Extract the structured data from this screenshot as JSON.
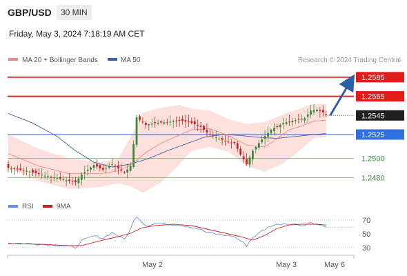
{
  "header": {
    "symbol": "GBP/USD",
    "timeframe": "30 MIN",
    "datetime": "Friday, May 3, 2024 7:18:19 AM CET"
  },
  "legend": {
    "ma20": "MA 20 + Bollinger Bands",
    "ma50": "MA 50",
    "credit": "Research © 2024 Trading Central",
    "rsi": "RSI",
    "rsi_ma": "9MA"
  },
  "colors": {
    "resistance": "#e31b1b",
    "support": "#6db96d",
    "ma50": "#3b5fa8",
    "ma20": "#f08a80",
    "bollinger": "#fde0dc",
    "pivot_line": "#4a7ee8",
    "arrow": "#2f5ea8",
    "candle_up": "#3b8a3b",
    "candle_down": "#cc2222",
    "rsi": "#6b8fe0",
    "rsi_ma": "#cc2222"
  },
  "chart_data": [
    {
      "type": "candlestick",
      "ylim": [
        1.246,
        1.2595
      ],
      "x_ticks": [
        "May 2",
        "May 3",
        "May 6"
      ],
      "current_price": "1.2545",
      "levels": [
        {
          "label": "1.2585",
          "value": 1.2585,
          "kind": "resistance"
        },
        {
          "label": "1.2565",
          "value": 1.2565,
          "kind": "resistance"
        },
        {
          "label": "1.2545",
          "value": 1.2545,
          "kind": "current"
        },
        {
          "label": "1.2525",
          "value": 1.2525,
          "kind": "pivot"
        },
        {
          "label": "1.2500",
          "value": 1.25,
          "kind": "support"
        },
        {
          "label": "1.2480",
          "value": 1.248,
          "kind": "support"
        }
      ],
      "forecast_arrow": {
        "from": 1.2545,
        "to": 1.2585
      },
      "series_anchors": {
        "close": [
          [
            0,
            1.249
          ],
          [
            6,
            1.2487
          ],
          [
            12,
            1.2482
          ],
          [
            18,
            1.2478
          ],
          [
            22,
            1.2475
          ],
          [
            24,
            1.2483
          ],
          [
            28,
            1.2493
          ],
          [
            31,
            1.2488
          ],
          [
            34,
            1.2494
          ],
          [
            38,
            1.2485
          ],
          [
            40,
            1.2492
          ],
          [
            41,
            1.2515
          ],
          [
            42,
            1.2543
          ],
          [
            45,
            1.2535
          ],
          [
            48,
            1.2537
          ],
          [
            52,
            1.2538
          ],
          [
            56,
            1.254
          ],
          [
            60,
            1.2537
          ],
          [
            63,
            1.2533
          ],
          [
            65,
            1.2527
          ],
          [
            68,
            1.2522
          ],
          [
            71,
            1.2518
          ],
          [
            74,
            1.2516
          ],
          [
            76,
            1.2504
          ],
          [
            78,
            1.2494
          ],
          [
            80,
            1.2508
          ],
          [
            83,
            1.252
          ],
          [
            86,
            1.253
          ],
          [
            90,
            1.2537
          ],
          [
            94,
            1.254
          ],
          [
            97,
            1.2542
          ],
          [
            99,
            1.255
          ],
          [
            101,
            1.2551
          ],
          [
            103,
            1.2548
          ],
          [
            104,
            1.2545
          ]
        ],
        "ma20": [
          [
            0,
            1.2505
          ],
          [
            10,
            1.2492
          ],
          [
            20,
            1.2484
          ],
          [
            30,
            1.2484
          ],
          [
            36,
            1.2487
          ],
          [
            40,
            1.2493
          ],
          [
            45,
            1.2506
          ],
          [
            50,
            1.2516
          ],
          [
            55,
            1.2523
          ],
          [
            60,
            1.253
          ],
          [
            66,
            1.2531
          ],
          [
            72,
            1.2524
          ],
          [
            78,
            1.2514
          ],
          [
            84,
            1.2512
          ],
          [
            88,
            1.2521
          ],
          [
            92,
            1.253
          ],
          [
            96,
            1.2534
          ],
          [
            100,
            1.2539
          ],
          [
            104,
            1.254
          ]
        ],
        "bb_upper": [
          [
            0,
            1.2525
          ],
          [
            10,
            1.251
          ],
          [
            20,
            1.25
          ],
          [
            30,
            1.2496
          ],
          [
            36,
            1.25
          ],
          [
            40,
            1.2522
          ],
          [
            44,
            1.2548
          ],
          [
            50,
            1.2553
          ],
          [
            56,
            1.2556
          ],
          [
            60,
            1.2552
          ],
          [
            66,
            1.255
          ],
          [
            72,
            1.2541
          ],
          [
            78,
            1.2536
          ],
          [
            84,
            1.2538
          ],
          [
            90,
            1.2546
          ],
          [
            96,
            1.2553
          ],
          [
            100,
            1.2557
          ],
          [
            104,
            1.2557
          ]
        ],
        "bb_lower": [
          [
            0,
            1.249
          ],
          [
            10,
            1.2476
          ],
          [
            20,
            1.2468
          ],
          [
            30,
            1.247
          ],
          [
            36,
            1.2474
          ],
          [
            40,
            1.2471
          ],
          [
            44,
            1.2464
          ],
          [
            50,
            1.2475
          ],
          [
            56,
            1.2494
          ],
          [
            60,
            1.2508
          ],
          [
            66,
            1.2512
          ],
          [
            72,
            1.2507
          ],
          [
            78,
            1.2492
          ],
          [
            84,
            1.2486
          ],
          [
            90,
            1.2495
          ],
          [
            96,
            1.251
          ],
          [
            100,
            1.2521
          ],
          [
            104,
            1.2523
          ]
        ],
        "ma50": [
          [
            0,
            1.2547
          ],
          [
            8,
            1.2537
          ],
          [
            16,
            1.2523
          ],
          [
            22,
            1.2508
          ],
          [
            28,
            1.2496
          ],
          [
            34,
            1.2491
          ],
          [
            40,
            1.2494
          ],
          [
            46,
            1.25
          ],
          [
            52,
            1.2508
          ],
          [
            58,
            1.2515
          ],
          [
            64,
            1.2522
          ],
          [
            70,
            1.2525
          ],
          [
            76,
            1.2524
          ],
          [
            82,
            1.2522
          ],
          [
            88,
            1.2521
          ],
          [
            94,
            1.2523
          ],
          [
            100,
            1.2525
          ],
          [
            104,
            1.2526
          ]
        ]
      }
    },
    {
      "type": "line",
      "name": "RSI",
      "ylim": [
        20,
        80
      ],
      "y_ticks": [
        "70",
        "50",
        "30"
      ],
      "guide_levels": [
        70,
        30
      ],
      "rsi_anchors": [
        [
          0,
          37
        ],
        [
          6,
          36
        ],
        [
          12,
          35
        ],
        [
          18,
          33
        ],
        [
          22,
          30
        ],
        [
          24,
          40
        ],
        [
          28,
          47
        ],
        [
          31,
          44
        ],
        [
          34,
          52
        ],
        [
          38,
          42
        ],
        [
          40,
          57
        ],
        [
          41,
          68
        ],
        [
          42,
          76
        ],
        [
          45,
          62
        ],
        [
          48,
          65
        ],
        [
          52,
          64
        ],
        [
          56,
          63
        ],
        [
          60,
          60
        ],
        [
          63,
          56
        ],
        [
          65,
          52
        ],
        [
          68,
          50
        ],
        [
          71,
          48
        ],
        [
          74,
          46
        ],
        [
          76,
          40
        ],
        [
          78,
          33
        ],
        [
          80,
          45
        ],
        [
          83,
          54
        ],
        [
          86,
          62
        ],
        [
          90,
          65
        ],
        [
          94,
          64
        ],
        [
          97,
          62
        ],
        [
          99,
          67
        ],
        [
          101,
          64
        ],
        [
          103,
          61
        ],
        [
          104,
          59
        ]
      ],
      "rsi_ma_anchors": [
        [
          0,
          36
        ],
        [
          10,
          35
        ],
        [
          20,
          33
        ],
        [
          24,
          33
        ],
        [
          30,
          40
        ],
        [
          36,
          46
        ],
        [
          40,
          51
        ],
        [
          44,
          59
        ],
        [
          48,
          62
        ],
        [
          54,
          64
        ],
        [
          60,
          62
        ],
        [
          66,
          56
        ],
        [
          72,
          50
        ],
        [
          76,
          46
        ],
        [
          80,
          41
        ],
        [
          84,
          48
        ],
        [
          88,
          58
        ],
        [
          92,
          63
        ],
        [
          96,
          64
        ],
        [
          100,
          64
        ],
        [
          104,
          63
        ]
      ]
    }
  ]
}
